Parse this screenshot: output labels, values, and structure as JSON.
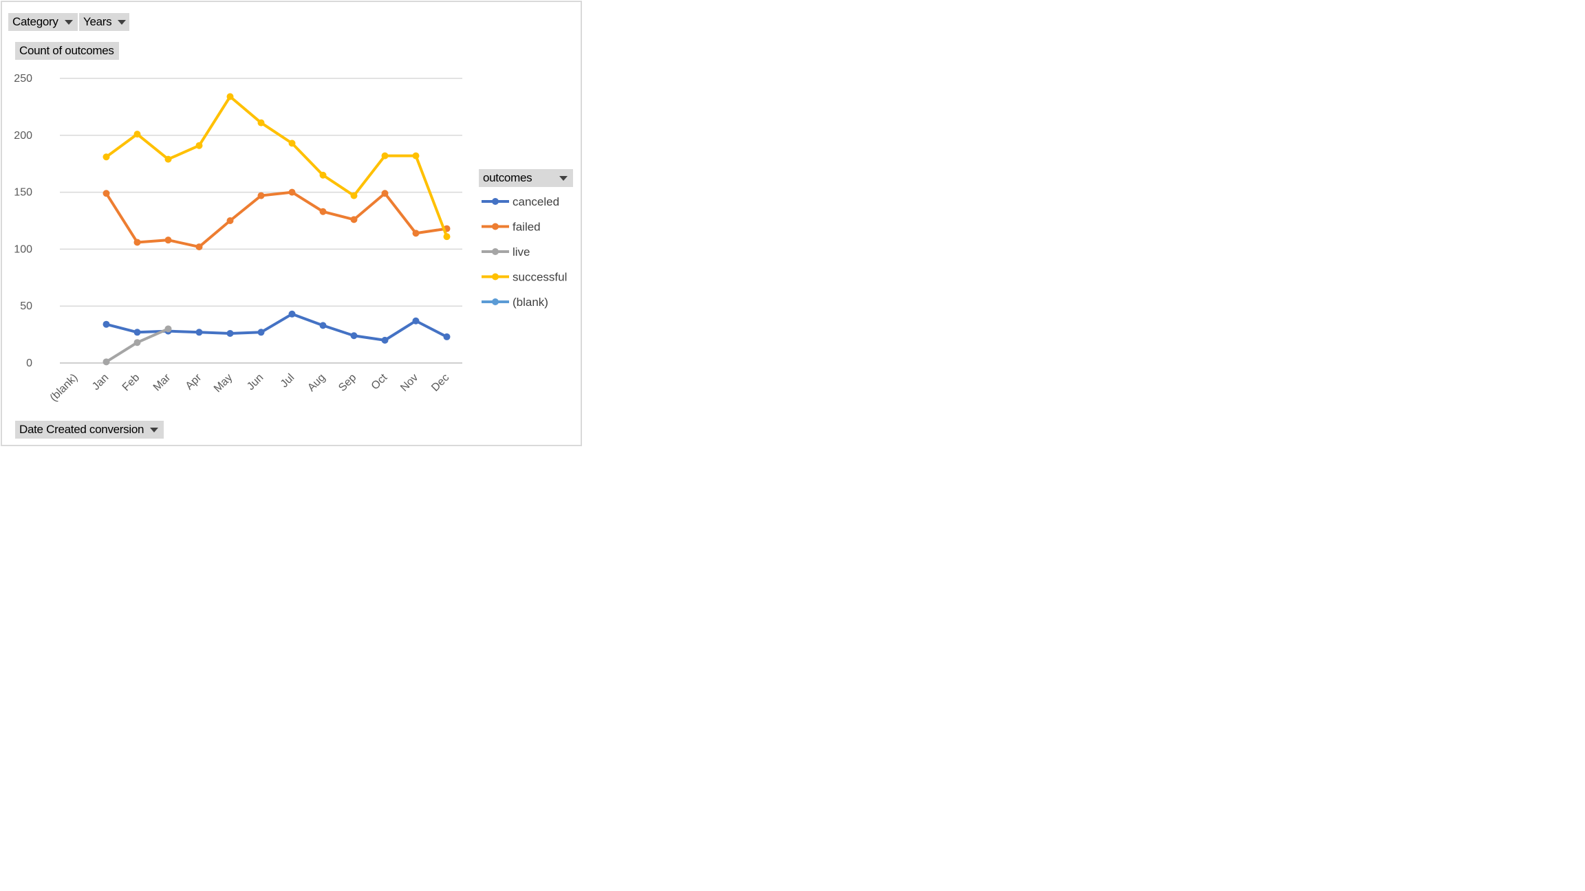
{
  "filters": {
    "category_label": "Category",
    "years_label": "Years",
    "value_field_label": "Count of outcomes",
    "axis_field_label": "Date Created conversion",
    "legend_field_label": "outcomes"
  },
  "chart_data": {
    "type": "line",
    "categories": [
      "(blank)",
      "Jan",
      "Feb",
      "Mar",
      "Apr",
      "May",
      "Jun",
      "Jul",
      "Aug",
      "Sep",
      "Oct",
      "Nov",
      "Dec"
    ],
    "ylim": [
      0,
      250
    ],
    "yticks": [
      "0",
      "50",
      "100",
      "150",
      "200",
      "250"
    ],
    "grid": true,
    "legend_position": "right",
    "series": [
      {
        "name": "canceled",
        "color": "#4472c4",
        "values": [
          null,
          34,
          27,
          28,
          27,
          26,
          27,
          43,
          33,
          24,
          20,
          37,
          23
        ]
      },
      {
        "name": "failed",
        "color": "#ed7d31",
        "values": [
          null,
          149,
          106,
          108,
          102,
          125,
          147,
          150,
          133,
          126,
          149,
          114,
          118
        ]
      },
      {
        "name": "live",
        "color": "#a5a5a5",
        "values": [
          null,
          1,
          18,
          30,
          null,
          null,
          null,
          null,
          null,
          null,
          null,
          null,
          null
        ]
      },
      {
        "name": "successful",
        "color": "#ffc000",
        "values": [
          null,
          181,
          201,
          179,
          191,
          234,
          211,
          193,
          165,
          147,
          182,
          182,
          111
        ]
      },
      {
        "name": "(blank)",
        "color": "#5b9bd5",
        "values": [
          null,
          null,
          null,
          null,
          null,
          null,
          null,
          null,
          null,
          null,
          null,
          null,
          null
        ]
      }
    ]
  }
}
